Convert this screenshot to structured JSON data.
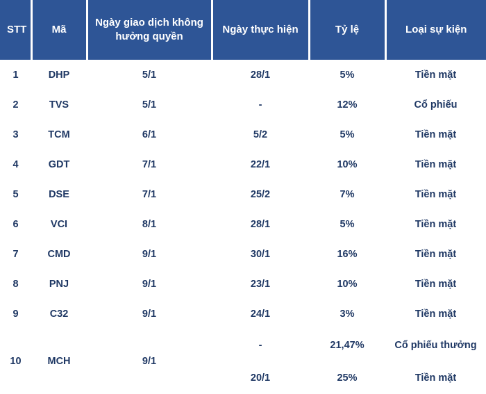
{
  "colors": {
    "header_bg": "#2e5596",
    "header_text": "#ffffff",
    "body_text": "#1f3864",
    "page_bg": "#ffffff"
  },
  "table": {
    "columns": [
      "STT",
      "Mã",
      "Ngày giao dịch không hưởng quyền",
      "Ngày thực hiện",
      "Tỷ lệ",
      "Loại sự kiện"
    ],
    "rows": [
      {
        "stt": "1",
        "ma": "DHP",
        "ex_date": "5/1",
        "exec_date": "28/1",
        "ty_le": "5%",
        "loai": "Tiền mặt"
      },
      {
        "stt": "2",
        "ma": "TVS",
        "ex_date": "5/1",
        "exec_date": "-",
        "ty_le": "12%",
        "loai": "Cổ phiếu"
      },
      {
        "stt": "3",
        "ma": "TCM",
        "ex_date": "6/1",
        "exec_date": "5/2",
        "ty_le": "5%",
        "loai": "Tiền mặt"
      },
      {
        "stt": "4",
        "ma": "GDT",
        "ex_date": "7/1",
        "exec_date": "22/1",
        "ty_le": "10%",
        "loai": "Tiền mặt"
      },
      {
        "stt": "5",
        "ma": "DSE",
        "ex_date": "7/1",
        "exec_date": "25/2",
        "ty_le": "7%",
        "loai": "Tiền mặt"
      },
      {
        "stt": "6",
        "ma": "VCI",
        "ex_date": "8/1",
        "exec_date": "28/1",
        "ty_le": "5%",
        "loai": "Tiền mặt"
      },
      {
        "stt": "7",
        "ma": "CMD",
        "ex_date": "9/1",
        "exec_date": "30/1",
        "ty_le": "16%",
        "loai": "Tiền mặt"
      },
      {
        "stt": "8",
        "ma": "PNJ",
        "ex_date": "9/1",
        "exec_date": "23/1",
        "ty_le": "10%",
        "loai": "Tiền mặt"
      },
      {
        "stt": "9",
        "ma": "C32",
        "ex_date": "9/1",
        "exec_date": "24/1",
        "ty_le": "3%",
        "loai": "Tiền mặt"
      },
      {
        "stt": "10",
        "ma": "MCH",
        "ex_date": "9/1",
        "sub_rows": [
          {
            "exec_date": "-",
            "ty_le": "21,47%",
            "loai": "Cổ phiếu thưởng"
          },
          {
            "exec_date": "20/1",
            "ty_le": "25%",
            "loai": "Tiền mặt"
          }
        ]
      }
    ]
  }
}
